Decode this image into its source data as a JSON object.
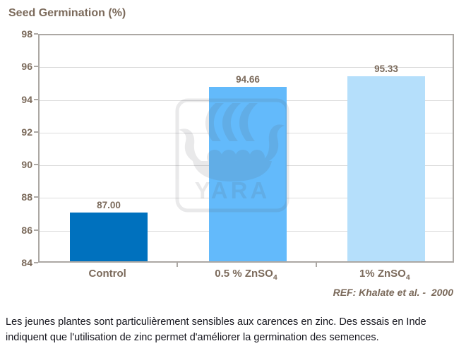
{
  "title": {
    "text": "Seed Germination (%)",
    "color": "#7B6A5B"
  },
  "chart_data": {
    "type": "bar",
    "title": "Seed Germination (%)",
    "ylabel": "Seed Germination (%)",
    "xlabel": "",
    "categories": [
      "Control",
      "0.5 % ZnSO₄",
      "1% ZnSO₄"
    ],
    "values": [
      87.0,
      94.66,
      95.33
    ],
    "value_labels": [
      "87.00",
      "94.66",
      "95.33"
    ],
    "bar_colors": [
      "#0071BE",
      "#63BAFB",
      "#B5DFFB"
    ],
    "ylim": [
      84,
      98
    ],
    "yticks": [
      98,
      96,
      94,
      92,
      90,
      88,
      86,
      84
    ],
    "grid": true,
    "legend": "none"
  },
  "reference": {
    "text": "REF: Khalate et al. -  2000",
    "color": "#7B6A5B"
  },
  "watermark": {
    "label": "YARA",
    "icon": "yara-viking-ship-logo"
  },
  "caption": {
    "text": "Les jeunes plantes sont particulièrement sensibles aux carences en zinc. Des essais en Inde indiquent que l'utilisation de zinc permet d'améliorer la germination des semences.",
    "color": "#14141C"
  },
  "colors": {
    "axis_text": "#7B6A5B",
    "grid_line": "#DCDCDC",
    "plot_border": "#ACA8A4",
    "bar_control": "#0071BE",
    "bar_zn05": "#63BAFB",
    "bar_zn1": "#B5DFFB"
  }
}
